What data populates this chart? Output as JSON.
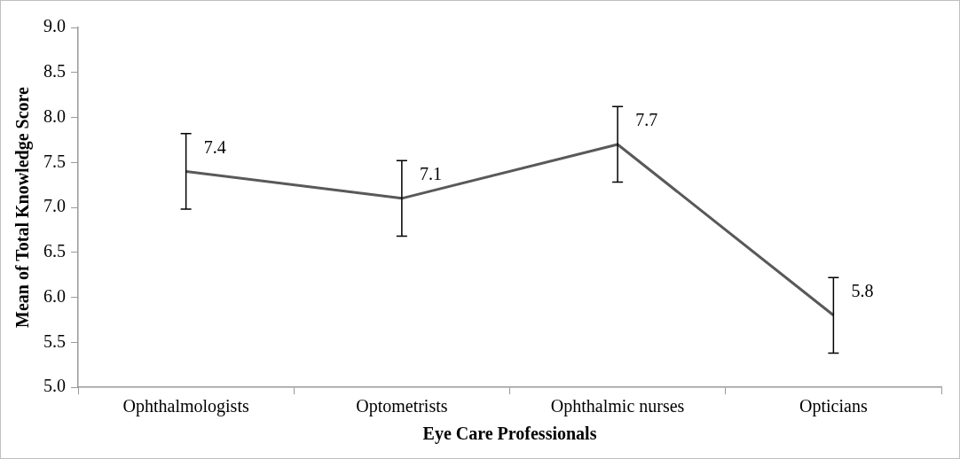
{
  "chart_data": {
    "type": "line",
    "xlabel": "Eye Care Professionals",
    "ylabel": "Mean of Total Knowledge Score",
    "categories": [
      "Ophthalmologists",
      "Optometrists",
      "Ophthalmic nurses",
      "Opticians"
    ],
    "series": [
      {
        "color": "#595959",
        "values": [
          7.4,
          7.1,
          7.7,
          5.8
        ],
        "errors": [
          0.42,
          0.42,
          0.42,
          0.42
        ]
      }
    ],
    "ylim": [
      5.0,
      9.0
    ],
    "yticks": [
      {
        "value": 5,
        "label": "5.0"
      },
      {
        "value": 5.5,
        "label": "5.5"
      },
      {
        "value": 6,
        "label": "6.0"
      },
      {
        "value": 6.5,
        "label": "6.5"
      },
      {
        "value": 7,
        "label": "7.0"
      },
      {
        "value": 7.5,
        "label": "7.5"
      },
      {
        "value": 8,
        "label": "8.0"
      },
      {
        "value": 8.5,
        "label": "8.5"
      },
      {
        "value": 9,
        "label": "9.0"
      }
    ],
    "grid": false,
    "legend": false,
    "marker": "none",
    "line_style": "solid",
    "data_labels": true
  }
}
